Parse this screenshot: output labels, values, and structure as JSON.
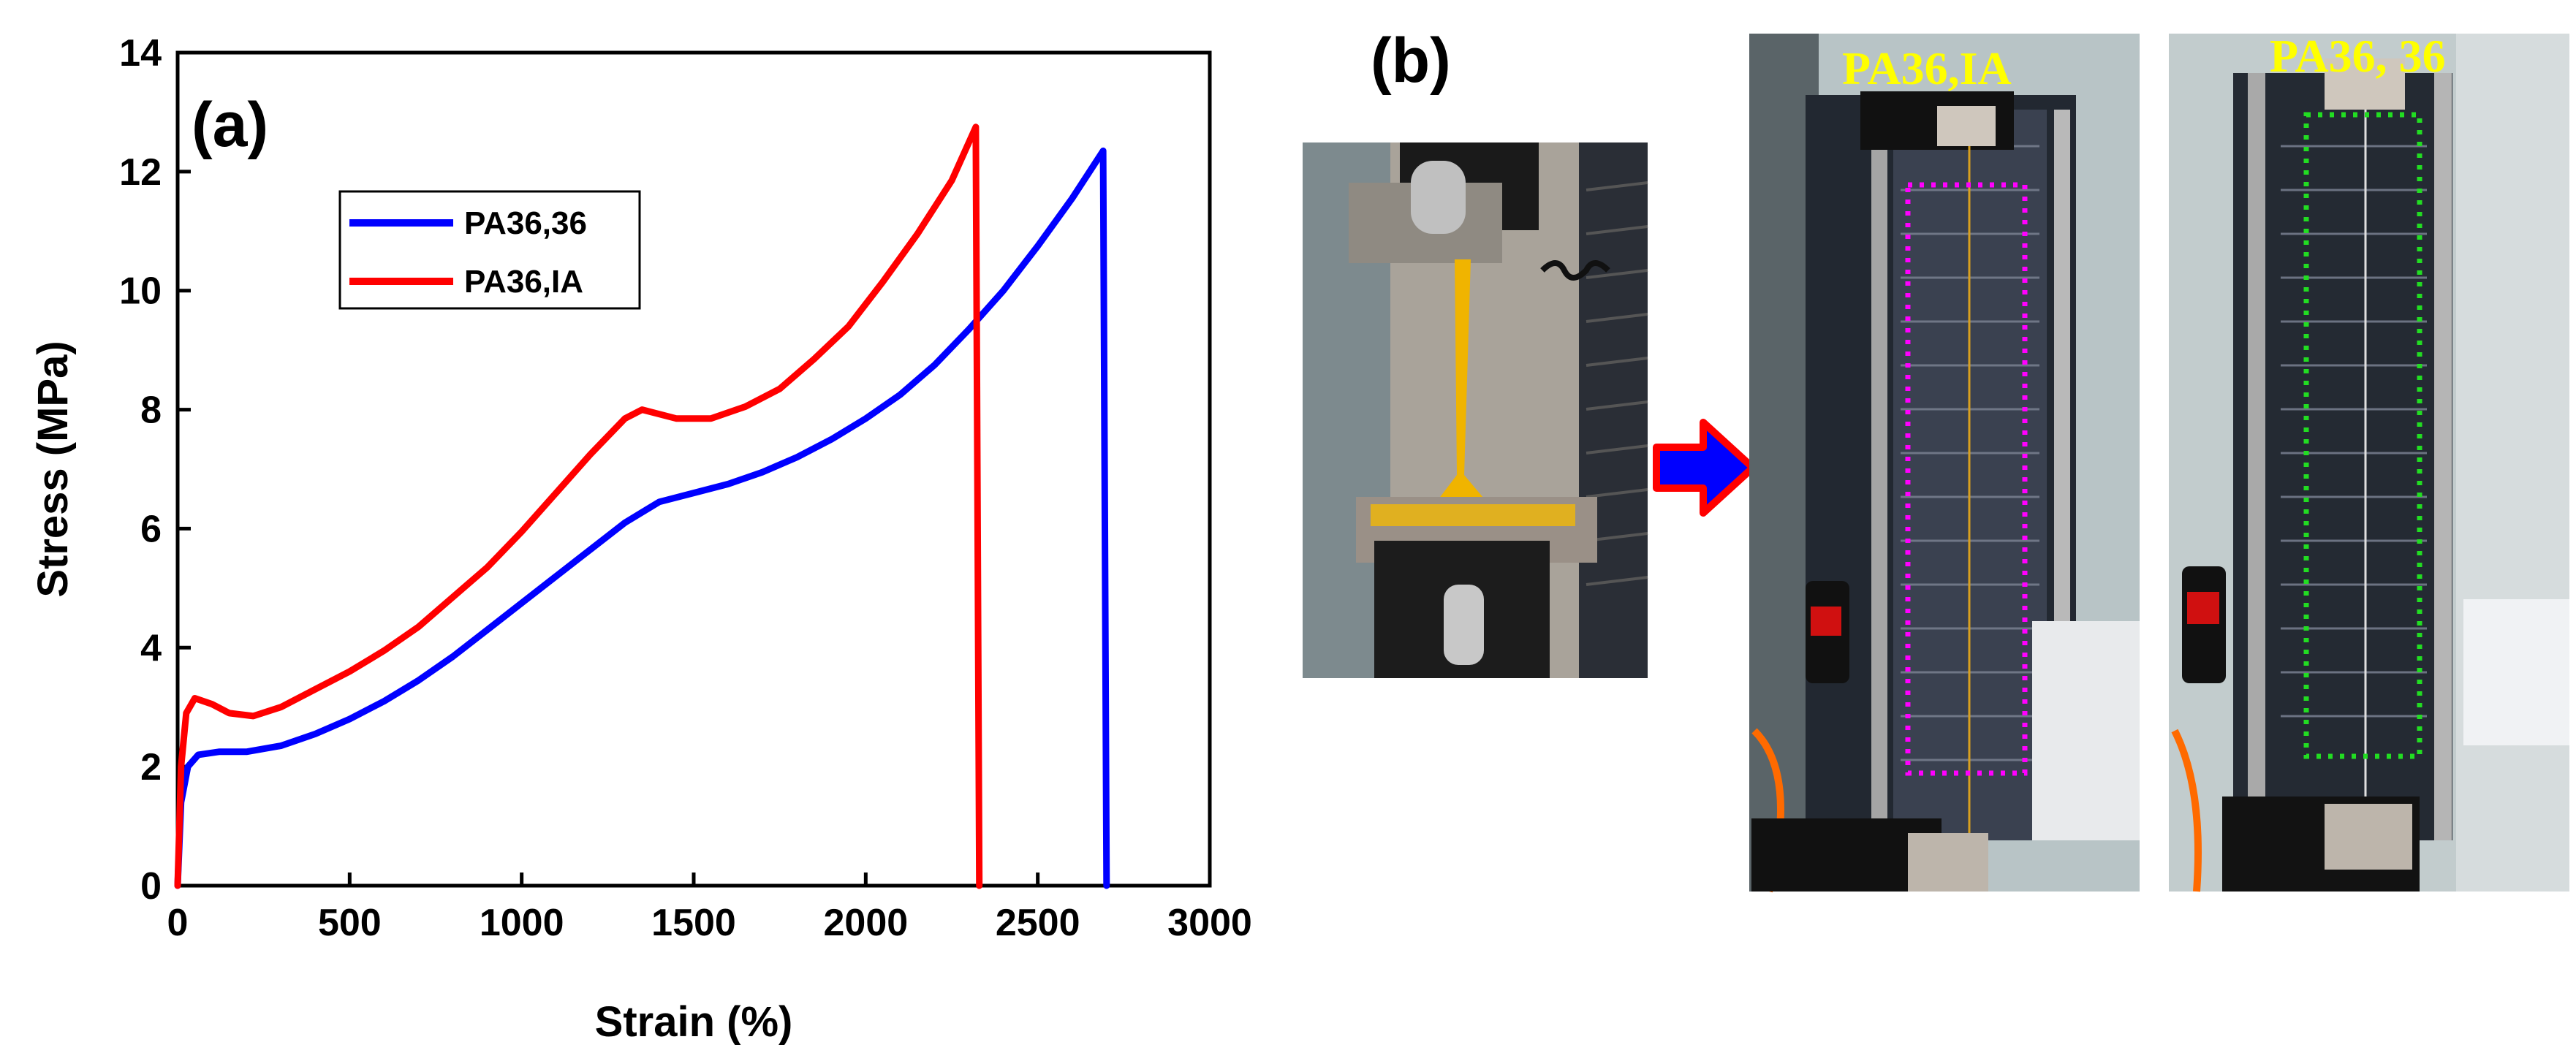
{
  "chart_data": {
    "type": "line",
    "xlabel": "Strain (%)",
    "ylabel": "Stress (MPa)",
    "xlim": [
      0,
      3000
    ],
    "ylim": [
      0,
      14
    ],
    "x_ticks": [
      "0",
      "500",
      "1000",
      "1500",
      "2000",
      "2500",
      "3000"
    ],
    "y_ticks": [
      "0",
      "2",
      "4",
      "6",
      "8",
      "10",
      "12",
      "14"
    ],
    "legend_position": "upper-left",
    "grid": false,
    "series": [
      {
        "name": "PA36,36",
        "color": "#0000ff",
        "points": [
          [
            0,
            0
          ],
          [
            10,
            1.4
          ],
          [
            30,
            2.0
          ],
          [
            60,
            2.2
          ],
          [
            120,
            2.25
          ],
          [
            200,
            2.25
          ],
          [
            300,
            2.35
          ],
          [
            400,
            2.55
          ],
          [
            500,
            2.8
          ],
          [
            600,
            3.1
          ],
          [
            700,
            3.45
          ],
          [
            800,
            3.85
          ],
          [
            900,
            4.3
          ],
          [
            1000,
            4.75
          ],
          [
            1100,
            5.2
          ],
          [
            1200,
            5.65
          ],
          [
            1300,
            6.1
          ],
          [
            1400,
            6.45
          ],
          [
            1500,
            6.6
          ],
          [
            1600,
            6.75
          ],
          [
            1700,
            6.95
          ],
          [
            1800,
            7.2
          ],
          [
            1900,
            7.5
          ],
          [
            2000,
            7.85
          ],
          [
            2100,
            8.25
          ],
          [
            2200,
            8.75
          ],
          [
            2300,
            9.35
          ],
          [
            2400,
            10.0
          ],
          [
            2500,
            10.75
          ],
          [
            2600,
            11.55
          ],
          [
            2690,
            12.35
          ],
          [
            2700,
            0
          ]
        ]
      },
      {
        "name": "PA36,IA",
        "color": "#ff0000",
        "points": [
          [
            0,
            0
          ],
          [
            10,
            2.0
          ],
          [
            25,
            2.9
          ],
          [
            50,
            3.15
          ],
          [
            100,
            3.05
          ],
          [
            150,
            2.9
          ],
          [
            220,
            2.85
          ],
          [
            300,
            3.0
          ],
          [
            400,
            3.3
          ],
          [
            500,
            3.6
          ],
          [
            600,
            3.95
          ],
          [
            700,
            4.35
          ],
          [
            800,
            4.85
          ],
          [
            900,
            5.35
          ],
          [
            1000,
            5.95
          ],
          [
            1100,
            6.6
          ],
          [
            1200,
            7.25
          ],
          [
            1300,
            7.85
          ],
          [
            1350,
            8.0
          ],
          [
            1450,
            7.85
          ],
          [
            1550,
            7.85
          ],
          [
            1650,
            8.05
          ],
          [
            1750,
            8.35
          ],
          [
            1850,
            8.85
          ],
          [
            1950,
            9.4
          ],
          [
            2050,
            10.15
          ],
          [
            2150,
            10.95
          ],
          [
            2250,
            11.85
          ],
          [
            2320,
            12.75
          ],
          [
            2330,
            0
          ]
        ]
      }
    ]
  },
  "panels": {
    "a_label": "(a)",
    "b_label": "(b)"
  },
  "photos": {
    "left_caption": "PA36,IA",
    "right_caption": "PA36, 36"
  },
  "colors": {
    "arrow_fill": "#0000ff",
    "arrow_outline": "#ff0000",
    "box_left": "#ff00ff",
    "box_right": "#22dd22"
  }
}
